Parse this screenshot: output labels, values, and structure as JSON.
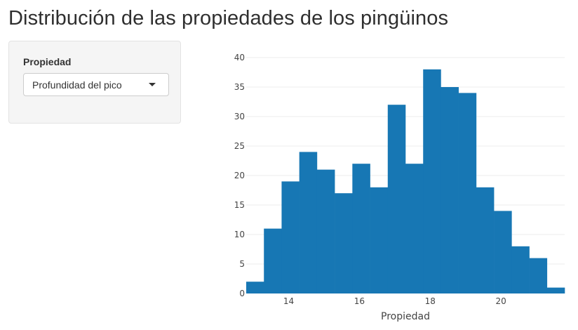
{
  "title": "Distribución de las propiedades de los pingüinos",
  "sidebar": {
    "label": "Propiedad",
    "select_value": "Profundidad del pico"
  },
  "colors": {
    "bar": "#1777b4",
    "grid": "#eeeeee",
    "panel_bg": "#f5f5f5"
  },
  "chart_data": {
    "type": "histogram",
    "title": "",
    "xlabel": "Propiedad",
    "ylabel": "",
    "bin_start": 12.8,
    "bin_width": 0.5,
    "values": [
      2,
      11,
      19,
      24,
      21,
      17,
      22,
      18,
      32,
      22,
      38,
      35,
      34,
      18,
      14,
      8,
      6,
      1
    ],
    "xlim": [
      12.8,
      21.8
    ],
    "ylim": [
      0,
      40
    ],
    "x_ticks": [
      14,
      16,
      18,
      20
    ],
    "y_ticks": [
      0,
      5,
      10,
      15,
      20,
      25,
      30,
      35,
      40
    ],
    "grid": "horizontal",
    "legend": "none"
  }
}
